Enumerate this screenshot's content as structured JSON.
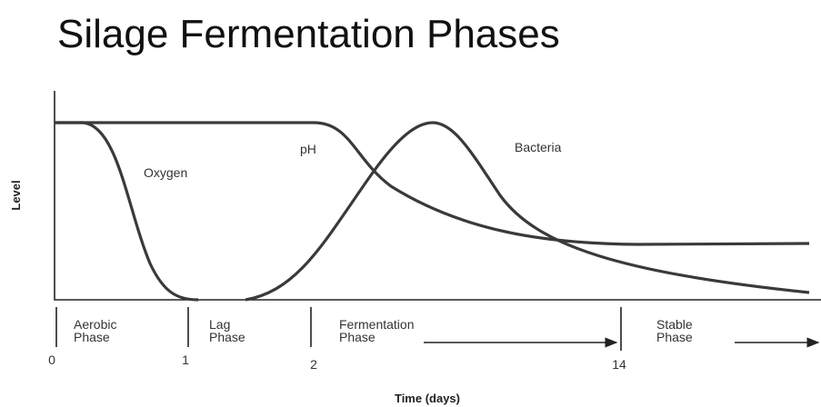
{
  "header": {
    "title": "Silage Fermentation Phases"
  },
  "axes": {
    "y_label": "Level",
    "x_label": "Time (days)"
  },
  "curves": [
    {
      "label": "Oxygen"
    },
    {
      "label": "pH"
    },
    {
      "label": "Bacteria"
    }
  ],
  "phases": [
    {
      "lines": [
        "Aerobic",
        "Phase"
      ]
    },
    {
      "lines": [
        "Lag",
        "Phase"
      ]
    },
    {
      "lines": [
        "Fermentation",
        "Phase"
      ]
    },
    {
      "lines": [
        "Stable",
        "Phase"
      ]
    }
  ],
  "ticks": [
    "0",
    "1",
    "2",
    "14"
  ]
}
